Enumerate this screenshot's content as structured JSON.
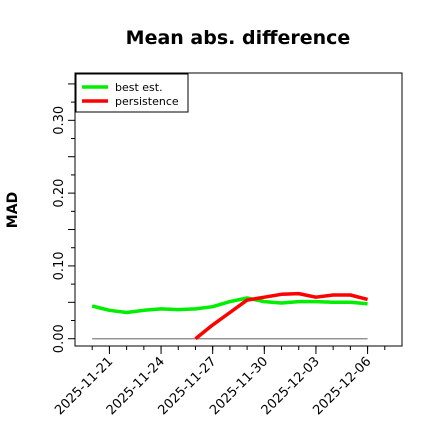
{
  "chart_data": {
    "type": "line",
    "title": "Mean abs. difference",
    "xlabel": "",
    "ylabel": "MAD",
    "x_ticks": [
      "2025-11-21",
      "2025-11-24",
      "2025-11-27",
      "2025-11-30",
      "2025-12-03",
      "2025-12-06"
    ],
    "y_ticks": [
      "0.00",
      "0.10",
      "0.20",
      "0.30"
    ],
    "xlim": [
      "2025-11-19",
      "2025-12-08"
    ],
    "ylim": [
      -0.01,
      0.365
    ],
    "grid": false,
    "legend_position": "top-left",
    "reference_line": 0,
    "series": [
      {
        "name": "best est.",
        "color": "#00ee00",
        "x": [
          "2025-11-20",
          "2025-11-21",
          "2025-11-22",
          "2025-11-23",
          "2025-11-24",
          "2025-11-25",
          "2025-11-26",
          "2025-11-27",
          "2025-11-28",
          "2025-11-29",
          "2025-11-30",
          "2025-12-01",
          "2025-12-02",
          "2025-12-03",
          "2025-12-04",
          "2025-12-05",
          "2025-12-06"
        ],
        "values": [
          0.045,
          0.039,
          0.036,
          0.039,
          0.041,
          0.04,
          0.041,
          0.044,
          0.051,
          0.056,
          0.051,
          0.049,
          0.051,
          0.051,
          0.05,
          0.05,
          0.048
        ]
      },
      {
        "name": "persistence",
        "color": "#ff0000",
        "x": [
          "2025-11-26",
          "2025-11-27",
          "2025-11-28",
          "2025-11-29",
          "2025-11-30",
          "2025-12-01",
          "2025-12-02",
          "2025-12-03",
          "2025-12-04",
          "2025-12-05",
          "2025-12-06"
        ],
        "values": [
          0.0,
          0.019,
          0.036,
          0.053,
          0.057,
          0.061,
          0.062,
          0.057,
          0.06,
          0.06,
          0.054
        ]
      }
    ]
  }
}
